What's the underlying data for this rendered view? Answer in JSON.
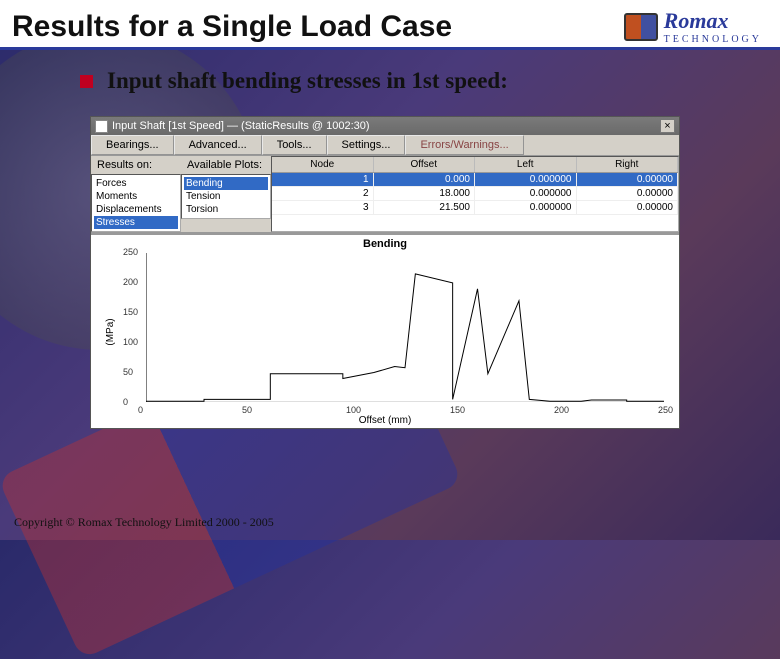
{
  "slide": {
    "title": "Results for a Single Load Case",
    "bullet": "Input shaft bending stresses in 1st speed:",
    "footer": "Copyright © Romax Technology Limited 2000 - 2005",
    "logo_text": "Romax",
    "logo_sub": "TECHNOLOGY",
    "accent_color": "#2a3a9a",
    "bullet_color": "#c00020"
  },
  "window": {
    "title": "Input Shaft [1st Speed]  —  (StaticResults @ 1002:30)",
    "close_label": "×",
    "menus": [
      "Bearings...",
      "Advanced...",
      "Tools...",
      "Settings...",
      "Errors/Warnings..."
    ],
    "results_on_label": "Results on:",
    "available_plots_label": "Available Plots:",
    "results_on": [
      "Forces",
      "Moments",
      "Displacements",
      "Stresses"
    ],
    "results_on_selected": 3,
    "available_plots": [
      "Bending",
      "Tension",
      "Torsion"
    ],
    "available_plots_selected": 0,
    "grid_columns": [
      "Node",
      "Offset",
      "Left",
      "Right"
    ],
    "grid_rows": [
      [
        "1",
        "0.000",
        "0.000000",
        "0.00000"
      ],
      [
        "2",
        "18.000",
        "0.000000",
        "0.00000"
      ],
      [
        "3",
        "21.500",
        "0.000000",
        "0.00000"
      ]
    ],
    "grid_selected_row": 0
  },
  "chart": {
    "type": "line",
    "title": "Bending",
    "ylabel": "(MPa)",
    "xlabel": "Offset (mm)",
    "xlim": [
      0,
      250
    ],
    "ylim": [
      0,
      250
    ],
    "xtick_step": 50,
    "ytick_step": 50,
    "line_color": "#000000",
    "background_color": "#ffffff",
    "points": [
      [
        0,
        2
      ],
      [
        28,
        2
      ],
      [
        28,
        5
      ],
      [
        60,
        5
      ],
      [
        60,
        48
      ],
      [
        95,
        48
      ],
      [
        95,
        40
      ],
      [
        110,
        50
      ],
      [
        120,
        60
      ],
      [
        125,
        58
      ],
      [
        130,
        215
      ],
      [
        148,
        200
      ],
      [
        148,
        5
      ],
      [
        160,
        190
      ],
      [
        165,
        48
      ],
      [
        180,
        170
      ],
      [
        185,
        5
      ],
      [
        195,
        2
      ],
      [
        210,
        2
      ],
      [
        215,
        4
      ],
      [
        232,
        4
      ],
      [
        232,
        2
      ],
      [
        250,
        2
      ]
    ]
  }
}
